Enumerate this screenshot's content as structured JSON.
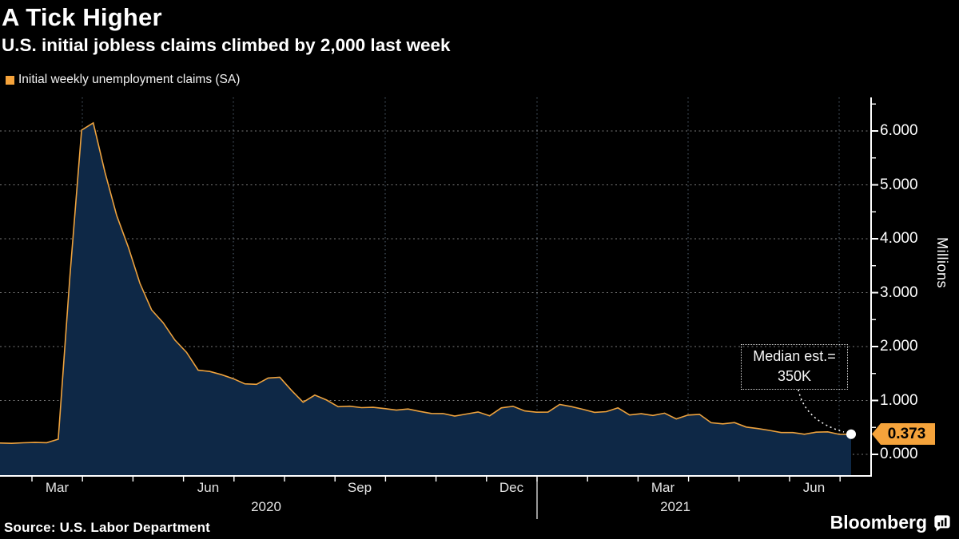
{
  "header": {
    "title": "A Tick Higher",
    "subtitle": "U.S. initial jobless claims climbed by 2,000 last week"
  },
  "legend": {
    "label": "Initial weekly unemployment claims (SA)",
    "swatch_color": "#f5a33b"
  },
  "chart_data": {
    "type": "area",
    "title": "A Tick Higher",
    "series_name": "Initial weekly unemployment claims (SA)",
    "x_frequency": "weekly",
    "x_tick_labels": [
      "Mar",
      "Jun",
      "Sep",
      "Dec",
      "Mar",
      "Jun"
    ],
    "year_labels": [
      "2020",
      "2021"
    ],
    "ylabel": "Millions",
    "ylim": [
      0,
      6.6
    ],
    "y_tick_labels": [
      "0.000",
      "1.000",
      "2.000",
      "3.000",
      "4.000",
      "5.000",
      "6.000"
    ],
    "grid": "dashed horizontal and vertical",
    "legend_position": "top-left",
    "values": [
      0.211,
      0.205,
      0.215,
      0.22,
      0.217,
      0.282,
      3.307,
      6.015,
      6.149,
      5.236,
      4.437,
      3.847,
      3.172,
      2.68,
      2.441,
      2.121,
      1.893,
      1.561,
      1.538,
      1.479,
      1.405,
      1.308,
      1.299,
      1.416,
      1.43,
      1.188,
      0.968,
      1.099,
      1.009,
      0.884,
      0.893,
      0.866,
      0.873,
      0.849,
      0.82,
      0.842,
      0.797,
      0.758,
      0.757,
      0.711,
      0.748,
      0.787,
      0.716,
      0.862,
      0.892,
      0.806,
      0.782,
      0.784,
      0.926,
      0.886,
      0.836,
      0.779,
      0.793,
      0.862,
      0.73,
      0.754,
      0.722,
      0.765,
      0.658,
      0.729,
      0.742,
      0.586,
      0.566,
      0.59,
      0.507,
      0.478,
      0.444,
      0.405,
      0.405,
      0.374,
      0.412,
      0.418,
      0.371,
      0.373
    ],
    "last_value_label": "0.373",
    "annotation": {
      "line1": "Median est.=",
      "line2": "350K"
    },
    "area_color": "#0e2846",
    "line_color": "#eda23e",
    "tag_color": "#f5a33b"
  },
  "axis_title": "Millions",
  "footer": {
    "source": "Source: U.S. Labor Department",
    "brand": "Bloomberg"
  }
}
